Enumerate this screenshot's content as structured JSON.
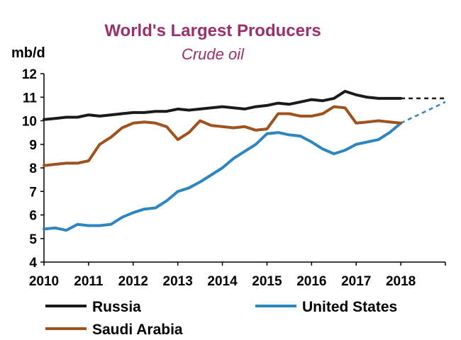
{
  "chart_data": {
    "type": "line",
    "title": "World's Largest Producers",
    "subtitle": "Crude oil",
    "ylabel": "mb/d",
    "xlabel": "",
    "ylim": [
      4,
      12
    ],
    "xlim": [
      2010,
      2019
    ],
    "y_ticks": [
      "4",
      "5",
      "6",
      "7",
      "8",
      "9",
      "10",
      "11",
      "12"
    ],
    "x_ticks": [
      "2010",
      "2011",
      "2012",
      "2013",
      "2014",
      "2015",
      "2016",
      "2017",
      "2018"
    ],
    "grid": false,
    "legend_position": "bottom",
    "series": [
      {
        "name": "Russia",
        "color": "#1a1a1a",
        "forecast_style": "dashed",
        "points": [
          [
            2010.0,
            10.05
          ],
          [
            2010.25,
            10.1
          ],
          [
            2010.5,
            10.15
          ],
          [
            2010.75,
            10.15
          ],
          [
            2011.0,
            10.25
          ],
          [
            2011.25,
            10.2
          ],
          [
            2011.5,
            10.25
          ],
          [
            2011.75,
            10.3
          ],
          [
            2012.0,
            10.35
          ],
          [
            2012.25,
            10.35
          ],
          [
            2012.5,
            10.4
          ],
          [
            2012.75,
            10.4
          ],
          [
            2013.0,
            10.5
          ],
          [
            2013.25,
            10.45
          ],
          [
            2013.5,
            10.5
          ],
          [
            2013.75,
            10.55
          ],
          [
            2014.0,
            10.6
          ],
          [
            2014.25,
            10.55
          ],
          [
            2014.5,
            10.5
          ],
          [
            2014.75,
            10.6
          ],
          [
            2015.0,
            10.65
          ],
          [
            2015.25,
            10.75
          ],
          [
            2015.5,
            10.7
          ],
          [
            2015.75,
            10.8
          ],
          [
            2016.0,
            10.9
          ],
          [
            2016.25,
            10.85
          ],
          [
            2016.5,
            10.95
          ],
          [
            2016.75,
            11.25
          ],
          [
            2017.0,
            11.1
          ],
          [
            2017.25,
            11.0
          ],
          [
            2017.5,
            10.95
          ],
          [
            2017.75,
            10.95
          ],
          [
            2018.0,
            10.95
          ]
        ],
        "forecast": [
          [
            2018.0,
            10.95
          ],
          [
            2018.5,
            10.95
          ],
          [
            2019.0,
            10.95
          ]
        ]
      },
      {
        "name": "United States",
        "color": "#2e86c1",
        "forecast_style": "dashed",
        "points": [
          [
            2010.0,
            5.4
          ],
          [
            2010.25,
            5.45
          ],
          [
            2010.5,
            5.35
          ],
          [
            2010.75,
            5.6
          ],
          [
            2011.0,
            5.55
          ],
          [
            2011.25,
            5.55
          ],
          [
            2011.5,
            5.6
          ],
          [
            2011.75,
            5.9
          ],
          [
            2012.0,
            6.1
          ],
          [
            2012.25,
            6.25
          ],
          [
            2012.5,
            6.3
          ],
          [
            2012.75,
            6.6
          ],
          [
            2013.0,
            7.0
          ],
          [
            2013.25,
            7.15
          ],
          [
            2013.5,
            7.4
          ],
          [
            2013.75,
            7.7
          ],
          [
            2014.0,
            8.0
          ],
          [
            2014.25,
            8.4
          ],
          [
            2014.5,
            8.7
          ],
          [
            2014.75,
            9.0
          ],
          [
            2015.0,
            9.45
          ],
          [
            2015.25,
            9.5
          ],
          [
            2015.5,
            9.4
          ],
          [
            2015.75,
            9.35
          ],
          [
            2016.0,
            9.1
          ],
          [
            2016.25,
            8.8
          ],
          [
            2016.5,
            8.6
          ],
          [
            2016.75,
            8.75
          ],
          [
            2017.0,
            9.0
          ],
          [
            2017.25,
            9.1
          ],
          [
            2017.5,
            9.2
          ],
          [
            2017.75,
            9.5
          ],
          [
            2018.0,
            9.9
          ]
        ],
        "forecast": [
          [
            2018.0,
            9.9
          ],
          [
            2018.5,
            10.35
          ],
          [
            2019.0,
            10.8
          ]
        ]
      },
      {
        "name": "Saudi Arabia",
        "color": "#a0521d",
        "points": [
          [
            2010.0,
            8.1
          ],
          [
            2010.25,
            8.15
          ],
          [
            2010.5,
            8.2
          ],
          [
            2010.75,
            8.2
          ],
          [
            2011.0,
            8.3
          ],
          [
            2011.25,
            9.0
          ],
          [
            2011.5,
            9.3
          ],
          [
            2011.75,
            9.7
          ],
          [
            2012.0,
            9.9
          ],
          [
            2012.25,
            9.95
          ],
          [
            2012.5,
            9.9
          ],
          [
            2012.75,
            9.75
          ],
          [
            2013.0,
            9.2
          ],
          [
            2013.25,
            9.5
          ],
          [
            2013.5,
            10.0
          ],
          [
            2013.75,
            9.8
          ],
          [
            2014.0,
            9.75
          ],
          [
            2014.25,
            9.7
          ],
          [
            2014.5,
            9.75
          ],
          [
            2014.75,
            9.6
          ],
          [
            2015.0,
            9.65
          ],
          [
            2015.25,
            10.3
          ],
          [
            2015.5,
            10.3
          ],
          [
            2015.75,
            10.2
          ],
          [
            2016.0,
            10.2
          ],
          [
            2016.25,
            10.3
          ],
          [
            2016.5,
            10.6
          ],
          [
            2016.75,
            10.55
          ],
          [
            2017.0,
            9.9
          ],
          [
            2017.25,
            9.95
          ],
          [
            2017.5,
            10.0
          ],
          [
            2017.75,
            9.95
          ],
          [
            2018.0,
            9.9
          ]
        ]
      }
    ]
  }
}
